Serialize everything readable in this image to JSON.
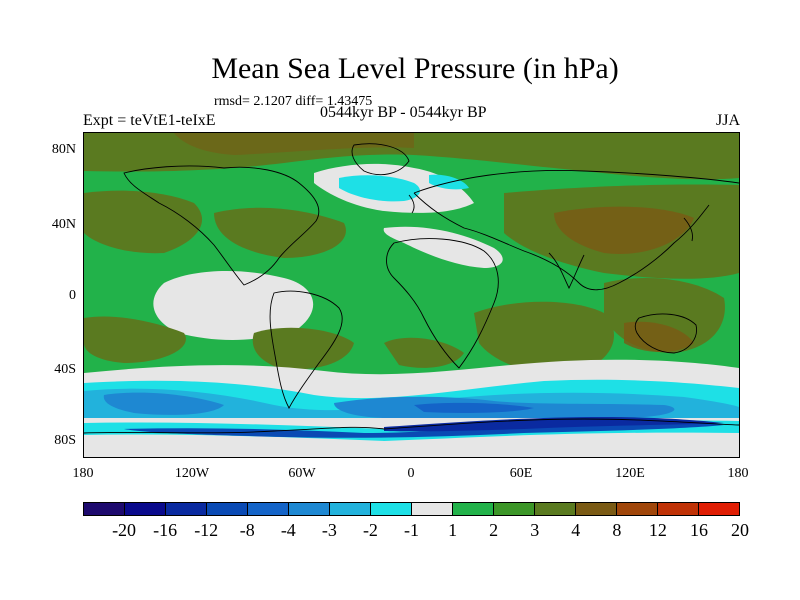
{
  "title": "Mean Sea Level Pressure (in hPa)",
  "stats": "rmsd= 2.1207 diff= 1.43475",
  "period": "0544kyr BP - 0544kyr BP",
  "experiment": "Expt = teVtE1-teIxE",
  "season": "JJA",
  "lat_ticks": [
    "80N",
    "40N",
    "0",
    "40S",
    "80S"
  ],
  "lon_ticks": [
    "180",
    "120W",
    "60W",
    "0",
    "60E",
    "120E",
    "180"
  ],
  "colorbar": {
    "labels": [
      "-20",
      "-16",
      "-12",
      "-8",
      "-4",
      "-3",
      "-2",
      "-1",
      "1",
      "2",
      "3",
      "4",
      "8",
      "12",
      "16",
      "20"
    ],
    "colors": [
      "#1e0a6e",
      "#0a0a8c",
      "#0a2aa0",
      "#0a4ab4",
      "#1464c8",
      "#1e88d2",
      "#22b2dc",
      "#1ee0e6",
      "#e6e6e6",
      "#22b24a",
      "#3c9628",
      "#5a7a20",
      "#7a5a14",
      "#a0460a",
      "#c03206",
      "#e01e04"
    ]
  }
}
